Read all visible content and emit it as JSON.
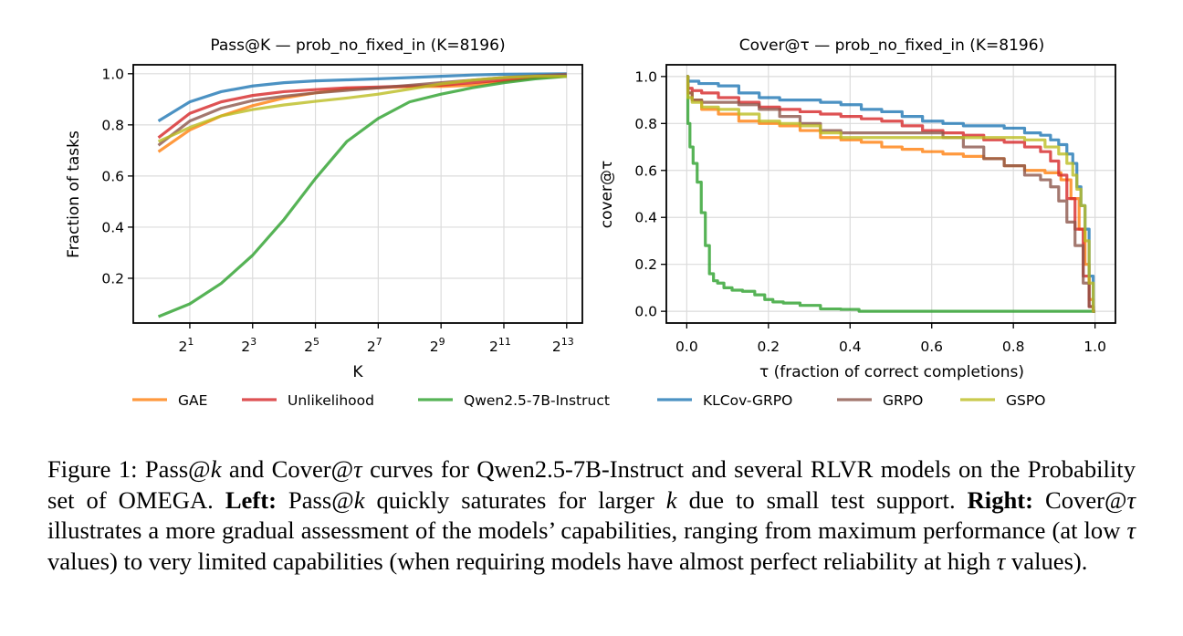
{
  "legend": {
    "position": "bottom-center",
    "entries": [
      {
        "name": "GAE",
        "color": "#ff7f0e"
      },
      {
        "name": "Unlikelihood",
        "color": "#d62728"
      },
      {
        "name": "Qwen2.5-7B-Instruct",
        "color": "#2ca02c"
      },
      {
        "name": "KLCov-GRPO",
        "color": "#1f77b4"
      },
      {
        "name": "GRPO",
        "color": "#8c564b"
      },
      {
        "name": "GSPO",
        "color": "#bcbd22"
      }
    ]
  },
  "chart_data": [
    {
      "type": "line",
      "title": "Pass@K — prob_no_fixed_in (K=8196)",
      "xlabel": "K",
      "ylabel": "Fraction of tasks",
      "xscale": "log2",
      "x": [
        1,
        2,
        4,
        8,
        16,
        32,
        64,
        128,
        256,
        512,
        1024,
        2048,
        4096,
        8192
      ],
      "xlim_log2": [
        -0.8,
        13.5
      ],
      "ylim": [
        0.025,
        1.035
      ],
      "xticks": [
        {
          "pow": 1,
          "base": "2",
          "exp": "1"
        },
        {
          "pow": 3,
          "base": "2",
          "exp": "3"
        },
        {
          "pow": 5,
          "base": "2",
          "exp": "5"
        },
        {
          "pow": 7,
          "base": "2",
          "exp": "7"
        },
        {
          "pow": 9,
          "base": "2",
          "exp": "9"
        },
        {
          "pow": 11,
          "base": "2",
          "exp": "11"
        },
        {
          "pow": 13,
          "base": "2",
          "exp": "13"
        }
      ],
      "yticks": [
        0.2,
        0.4,
        0.6,
        0.8,
        1.0
      ],
      "ytick_labels": [
        "0.2",
        "0.4",
        "0.6",
        "0.8",
        "1.0"
      ],
      "grid": true,
      "series": [
        {
          "name": "GAE",
          "values": [
            0.695,
            0.78,
            0.835,
            0.875,
            0.905,
            0.925,
            0.94,
            0.945,
            0.95,
            0.95,
            0.955,
            0.97,
            0.985,
            0.99
          ]
        },
        {
          "name": "Unlikelihood",
          "values": [
            0.75,
            0.845,
            0.89,
            0.915,
            0.93,
            0.938,
            0.945,
            0.948,
            0.952,
            0.955,
            0.965,
            0.975,
            0.985,
            0.995
          ]
        },
        {
          "name": "Qwen2.5-7B-Instruct",
          "values": [
            0.05,
            0.1,
            0.18,
            0.29,
            0.43,
            0.59,
            0.735,
            0.825,
            0.89,
            0.92,
            0.945,
            0.965,
            0.98,
            0.99
          ]
        },
        {
          "name": "KLCov-GRPO",
          "values": [
            0.815,
            0.89,
            0.93,
            0.952,
            0.965,
            0.972,
            0.976,
            0.98,
            0.985,
            0.99,
            0.995,
            0.998,
            0.999,
            1.0
          ]
        },
        {
          "name": "GRPO",
          "values": [
            0.72,
            0.815,
            0.865,
            0.895,
            0.912,
            0.925,
            0.935,
            0.945,
            0.955,
            0.965,
            0.975,
            0.985,
            0.992,
            0.998
          ]
        },
        {
          "name": "GSPO",
          "values": [
            0.735,
            0.79,
            0.835,
            0.86,
            0.878,
            0.892,
            0.905,
            0.92,
            0.94,
            0.96,
            0.975,
            0.985,
            0.99,
            0.99
          ]
        }
      ]
    },
    {
      "type": "line",
      "title": "Cover@τ — prob_no_fixed_in (K=8196)",
      "xlabel": "τ (fraction of correct completions)",
      "ylabel": "cover@τ",
      "xlim": [
        -0.05,
        1.05
      ],
      "ylim": [
        -0.05,
        1.05
      ],
      "xticks": [
        0.0,
        0.2,
        0.4,
        0.6,
        0.8,
        1.0
      ],
      "xtick_labels": [
        "0.0",
        "0.2",
        "0.4",
        "0.6",
        "0.8",
        "1.0"
      ],
      "yticks": [
        0.0,
        0.2,
        0.4,
        0.6,
        0.8,
        1.0
      ],
      "ytick_labels": [
        "0.0",
        "0.2",
        "0.4",
        "0.6",
        "0.8",
        "1.0"
      ],
      "grid": true,
      "series": [
        {
          "name": "GAE",
          "x": [
            0.0,
            0.005,
            0.02,
            0.05,
            0.1,
            0.15,
            0.2,
            0.25,
            0.3,
            0.35,
            0.4,
            0.45,
            0.5,
            0.55,
            0.6,
            0.65,
            0.7,
            0.75,
            0.8,
            0.85,
            0.9,
            0.93,
            0.95,
            0.97,
            0.98,
            0.99,
            1.0
          ],
          "y": [
            1.0,
            0.93,
            0.9,
            0.86,
            0.84,
            0.81,
            0.8,
            0.79,
            0.77,
            0.74,
            0.73,
            0.72,
            0.7,
            0.69,
            0.68,
            0.67,
            0.66,
            0.65,
            0.62,
            0.6,
            0.59,
            0.56,
            0.48,
            0.35,
            0.2,
            0.05,
            0.0
          ]
        },
        {
          "name": "Unlikelihood",
          "x": [
            0.0,
            0.005,
            0.02,
            0.05,
            0.1,
            0.15,
            0.2,
            0.25,
            0.3,
            0.35,
            0.4,
            0.45,
            0.5,
            0.55,
            0.6,
            0.65,
            0.7,
            0.75,
            0.8,
            0.85,
            0.88,
            0.9,
            0.92,
            0.94,
            0.96,
            0.98,
            0.99,
            1.0
          ],
          "y": [
            1.0,
            0.95,
            0.94,
            0.93,
            0.91,
            0.89,
            0.87,
            0.86,
            0.85,
            0.84,
            0.83,
            0.82,
            0.81,
            0.79,
            0.77,
            0.76,
            0.75,
            0.73,
            0.72,
            0.7,
            0.68,
            0.64,
            0.58,
            0.48,
            0.35,
            0.15,
            0.02,
            0.0
          ]
        },
        {
          "name": "Qwen2.5-7B-Instruct",
          "x": [
            0.0,
            0.005,
            0.01,
            0.02,
            0.03,
            0.04,
            0.05,
            0.06,
            0.07,
            0.08,
            0.1,
            0.12,
            0.15,
            0.18,
            0.2,
            0.22,
            0.25,
            0.3,
            0.35,
            0.4,
            0.44,
            0.5,
            0.6,
            0.8,
            1.0
          ],
          "y": [
            1.0,
            0.8,
            0.7,
            0.63,
            0.55,
            0.42,
            0.28,
            0.16,
            0.13,
            0.12,
            0.1,
            0.09,
            0.085,
            0.07,
            0.05,
            0.04,
            0.035,
            0.025,
            0.01,
            0.008,
            0.0,
            0.0,
            0.0,
            0.0,
            0.0
          ]
        },
        {
          "name": "KLCov-GRPO",
          "x": [
            0.0,
            0.005,
            0.05,
            0.1,
            0.15,
            0.2,
            0.25,
            0.3,
            0.35,
            0.4,
            0.45,
            0.5,
            0.55,
            0.6,
            0.65,
            0.7,
            0.75,
            0.8,
            0.85,
            0.88,
            0.9,
            0.92,
            0.94,
            0.95,
            0.96,
            0.97,
            0.98,
            0.99,
            1.0
          ],
          "y": [
            1.0,
            0.98,
            0.97,
            0.96,
            0.93,
            0.91,
            0.9,
            0.9,
            0.89,
            0.88,
            0.86,
            0.85,
            0.83,
            0.81,
            0.8,
            0.79,
            0.79,
            0.78,
            0.76,
            0.75,
            0.73,
            0.71,
            0.67,
            0.63,
            0.53,
            0.45,
            0.35,
            0.15,
            0.0
          ]
        },
        {
          "name": "GRPO",
          "x": [
            0.0,
            0.005,
            0.02,
            0.05,
            0.1,
            0.15,
            0.2,
            0.25,
            0.3,
            0.35,
            0.4,
            0.5,
            0.55,
            0.6,
            0.65,
            0.7,
            0.75,
            0.8,
            0.85,
            0.88,
            0.9,
            0.92,
            0.94,
            0.96,
            0.98,
            0.99,
            1.0
          ],
          "y": [
            1.0,
            0.93,
            0.9,
            0.89,
            0.89,
            0.88,
            0.86,
            0.83,
            0.8,
            0.77,
            0.76,
            0.76,
            0.76,
            0.76,
            0.74,
            0.7,
            0.65,
            0.62,
            0.58,
            0.56,
            0.53,
            0.47,
            0.38,
            0.28,
            0.12,
            0.02,
            0.0
          ]
        },
        {
          "name": "GSPO",
          "x": [
            0.0,
            0.005,
            0.02,
            0.05,
            0.1,
            0.15,
            0.2,
            0.25,
            0.3,
            0.35,
            0.4,
            0.5,
            0.6,
            0.7,
            0.75,
            0.8,
            0.85,
            0.9,
            0.92,
            0.94,
            0.95,
            0.96,
            0.97,
            0.98,
            0.99,
            1.0
          ],
          "y": [
            1.0,
            0.91,
            0.89,
            0.87,
            0.86,
            0.84,
            0.81,
            0.8,
            0.79,
            0.76,
            0.74,
            0.74,
            0.74,
            0.74,
            0.74,
            0.74,
            0.73,
            0.7,
            0.67,
            0.63,
            0.58,
            0.52,
            0.45,
            0.3,
            0.12,
            0.0
          ]
        }
      ]
    }
  ],
  "caption": {
    "label": "Figure 1:",
    "parts": [
      {
        "t": "r",
        "v": "Figure 1: Pass@"
      },
      {
        "t": "i",
        "v": "k"
      },
      {
        "t": "r",
        "v": " and Cover@"
      },
      {
        "t": "i",
        "v": "τ"
      },
      {
        "t": "r",
        "v": " curves for Qwen2.5-7B-Instruct and several RLVR models on the Probability set of OMEGA. "
      },
      {
        "t": "b",
        "v": "Left:"
      },
      {
        "t": "r",
        "v": " Pass@"
      },
      {
        "t": "i",
        "v": "k"
      },
      {
        "t": "r",
        "v": " quickly saturates for larger "
      },
      {
        "t": "i",
        "v": "k"
      },
      {
        "t": "r",
        "v": " due to small test support. "
      },
      {
        "t": "b",
        "v": "Right:"
      },
      {
        "t": "r",
        "v": " Cover@"
      },
      {
        "t": "i",
        "v": "τ"
      },
      {
        "t": "r",
        "v": " illustrates a more gradual assessment of the models’ capabilities, ranging from maximum performance (at low "
      },
      {
        "t": "i",
        "v": "τ"
      },
      {
        "t": "r",
        "v": " values) to very limited capabilities (when requiring models have almost perfect reliability at high "
      },
      {
        "t": "i",
        "v": "τ"
      },
      {
        "t": "r",
        "v": " values)."
      }
    ]
  }
}
